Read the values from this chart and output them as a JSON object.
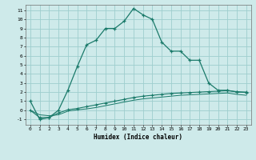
{
  "xlabel": "Humidex (Indice chaleur)",
  "background_color": "#ceeaea",
  "grid_color": "#9ecece",
  "line_color": "#1a7a6a",
  "xlim": [
    -0.5,
    23.5
  ],
  "ylim": [
    -1.6,
    11.6
  ],
  "xticks": [
    0,
    1,
    2,
    3,
    4,
    5,
    6,
    7,
    8,
    9,
    10,
    11,
    12,
    13,
    14,
    15,
    16,
    17,
    18,
    19,
    20,
    21,
    22,
    23
  ],
  "yticks": [
    -1,
    0,
    1,
    2,
    3,
    4,
    5,
    6,
    7,
    8,
    9,
    10,
    11
  ],
  "line1_x": [
    0,
    1,
    2,
    3,
    4,
    5,
    6,
    7,
    8,
    9,
    10,
    11,
    12,
    13,
    14,
    15,
    16,
    17,
    18,
    19,
    20,
    21,
    22,
    23
  ],
  "line1_y": [
    1.0,
    -1.0,
    -0.8,
    0.0,
    2.2,
    4.8,
    7.2,
    7.7,
    9.0,
    9.0,
    9.8,
    11.2,
    10.5,
    10.0,
    7.5,
    6.5,
    6.5,
    5.5,
    5.5,
    3.0,
    2.2,
    2.2,
    2.0,
    2.0
  ],
  "line2_x": [
    0,
    1,
    2,
    3,
    4,
    5,
    6,
    7,
    8,
    9,
    10,
    11,
    12,
    13,
    14,
    15,
    16,
    17,
    18,
    19,
    20,
    21,
    22,
    23
  ],
  "line2_y": [
    0.0,
    -0.8,
    -0.8,
    -0.3,
    0.05,
    0.2,
    0.4,
    0.6,
    0.8,
    1.0,
    1.2,
    1.4,
    1.55,
    1.65,
    1.75,
    1.85,
    1.9,
    1.95,
    2.0,
    2.05,
    2.1,
    2.15,
    2.05,
    1.95
  ],
  "line3_x": [
    0,
    1,
    2,
    3,
    4,
    5,
    6,
    7,
    8,
    9,
    10,
    11,
    12,
    13,
    14,
    15,
    16,
    17,
    18,
    19,
    20,
    21,
    22,
    23
  ],
  "line3_y": [
    0.0,
    -0.5,
    -0.6,
    -0.5,
    -0.1,
    0.05,
    0.15,
    0.3,
    0.5,
    0.7,
    0.9,
    1.1,
    1.25,
    1.35,
    1.45,
    1.55,
    1.65,
    1.7,
    1.75,
    1.8,
    1.85,
    1.9,
    1.75,
    1.65
  ]
}
